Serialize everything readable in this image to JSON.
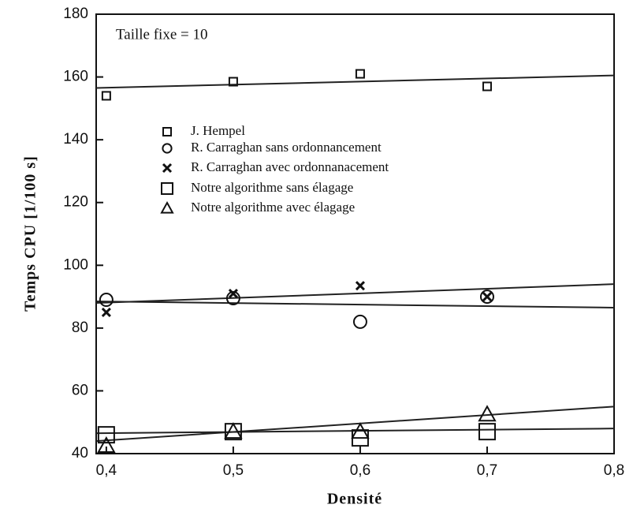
{
  "chart_data": {
    "type": "scatter",
    "annotation": "Taille fixe = 10",
    "x_label": "Densité",
    "y_label": "Temps CPU [1/100 s]",
    "xlim": [
      0.392,
      0.8
    ],
    "ylim": [
      40,
      180
    ],
    "xticks": [
      {
        "value": 0.4,
        "label": "0,4"
      },
      {
        "value": 0.5,
        "label": "0,5"
      },
      {
        "value": 0.6,
        "label": "0,6"
      },
      {
        "value": 0.7,
        "label": "0,7"
      },
      {
        "value": 0.8,
        "label": "0,8"
      }
    ],
    "yticks": [
      40,
      60,
      80,
      100,
      120,
      140,
      160,
      180
    ],
    "x": [
      0.4,
      0.5,
      0.6,
      0.7
    ],
    "series": [
      {
        "name": "J. Hempel",
        "marker": "dotted-square",
        "color": "#111",
        "values": [
          154,
          158.5,
          161,
          157
        ]
      },
      {
        "name": "R. Carraghan sans ordonnancement",
        "marker": "circle",
        "color": "#111",
        "values": [
          89,
          89.5,
          82,
          90
        ]
      },
      {
        "name": "R. Carraghan avec ordonnanacement",
        "marker": "cross",
        "color": "#111",
        "values": [
          85,
          91,
          93.5,
          90
        ]
      },
      {
        "name": "Notre algorithme sans élagage",
        "marker": "square",
        "color": "#111",
        "values": [
          46,
          47,
          45,
          47
        ]
      },
      {
        "name": "Notre algorithme avec élagage",
        "marker": "triangle",
        "color": "#111",
        "values": [
          42.5,
          47,
          47,
          52.5
        ]
      }
    ],
    "trend_lines": [
      {
        "x": [
          0.392,
          0.8
        ],
        "values": [
          156.5,
          160.5
        ]
      },
      {
        "x": [
          0.392,
          0.8
        ],
        "values": [
          88,
          94
        ]
      },
      {
        "x": [
          0.392,
          0.8
        ],
        "values": [
          88.5,
          86.5
        ]
      },
      {
        "x": [
          0.392,
          0.8
        ],
        "values": [
          44,
          55
        ]
      },
      {
        "x": [
          0.392,
          0.8
        ],
        "values": [
          46.5,
          48
        ]
      }
    ]
  }
}
